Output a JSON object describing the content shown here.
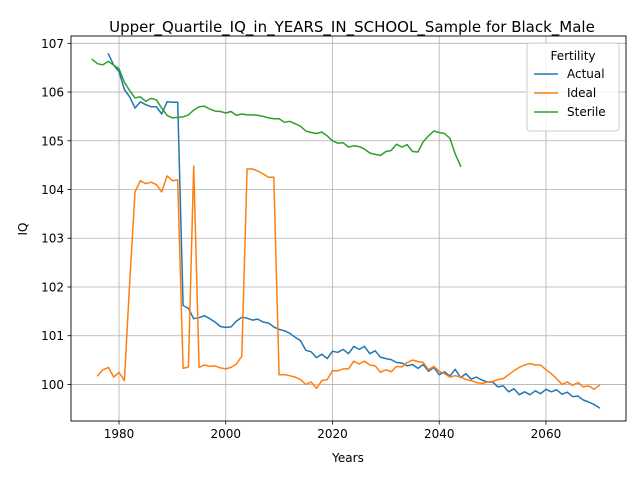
{
  "chart_data": {
    "type": "line",
    "title": "Upper_Quartile_IQ_in_YEARS_IN_SCHOOL_Sample for Black_Male",
    "xlabel": "Years",
    "ylabel": "IQ",
    "xlim": [
      1971,
      2075
    ],
    "ylim": [
      99.25,
      107.15
    ],
    "xticks": [
      1980,
      2000,
      2020,
      2040,
      2060
    ],
    "yticks": [
      100,
      101,
      102,
      103,
      104,
      105,
      106,
      107
    ],
    "grid": true,
    "legend": {
      "title": "Fertility",
      "placement": "top-right"
    },
    "series": [
      {
        "name": "Actual",
        "color": "#1f77b4",
        "x": [
          1978,
          1979,
          1980,
          1981,
          1982,
          1983,
          1984,
          1985,
          1986,
          1987,
          1988,
          1989,
          1990,
          1991,
          1992,
          1993,
          1994,
          1995,
          1996,
          1997,
          1998,
          1999,
          2000,
          2001,
          2002,
          2003,
          2004,
          2005,
          2006,
          2007,
          2008,
          2009,
          2010,
          2011,
          2012,
          2013,
          2014,
          2015,
          2016,
          2017,
          2018,
          2019,
          2020,
          2021,
          2022,
          2023,
          2024,
          2025,
          2026,
          2027,
          2028,
          2029,
          2030,
          2031,
          2032,
          2033,
          2034,
          2035,
          2036,
          2037,
          2038,
          2039,
          2040,
          2041,
          2042,
          2043,
          2044,
          2045,
          2046,
          2047,
          2048,
          2049,
          2050,
          2051,
          2052,
          2053,
          2054,
          2055,
          2056,
          2057,
          2058,
          2059,
          2060,
          2061,
          2062,
          2063,
          2064,
          2065,
          2066,
          2067,
          2068,
          2069,
          2070
        ],
        "values": [
          106.78,
          106.55,
          106.42,
          106.05,
          105.9,
          105.67,
          105.8,
          105.74,
          105.7,
          105.7,
          105.55,
          105.8,
          105.79,
          105.79,
          101.62,
          101.56,
          101.35,
          101.37,
          101.41,
          101.35,
          101.28,
          101.19,
          101.17,
          101.18,
          101.3,
          101.38,
          101.36,
          101.32,
          101.34,
          101.28,
          101.26,
          101.18,
          101.13,
          101.1,
          101.05,
          100.97,
          100.9,
          100.7,
          100.67,
          100.55,
          100.62,
          100.53,
          100.68,
          100.66,
          100.72,
          100.63,
          100.78,
          100.72,
          100.78,
          100.63,
          100.69,
          100.56,
          100.53,
          100.51,
          100.45,
          100.44,
          100.38,
          100.41,
          100.33,
          100.41,
          100.27,
          100.35,
          100.2,
          100.26,
          100.17,
          100.31,
          100.14,
          100.22,
          100.11,
          100.15,
          100.09,
          100.05,
          100.05,
          99.95,
          99.97,
          99.85,
          99.91,
          99.79,
          99.85,
          99.79,
          99.87,
          99.81,
          99.9,
          99.85,
          99.89,
          99.8,
          99.84,
          99.75,
          99.76,
          99.68,
          99.64,
          99.59,
          99.52
        ]
      },
      {
        "name": "Ideal",
        "color": "#ff7f0e",
        "x": [
          1976,
          1977,
          1978,
          1979,
          1980,
          1981,
          1982,
          1983,
          1984,
          1985,
          1986,
          1987,
          1988,
          1989,
          1990,
          1991,
          1992,
          1993,
          1994,
          1995,
          1996,
          1997,
          1998,
          1999,
          2000,
          2001,
          2002,
          2003,
          2004,
          2005,
          2006,
          2007,
          2008,
          2009,
          2010,
          2011,
          2012,
          2013,
          2014,
          2015,
          2016,
          2017,
          2018,
          2019,
          2020,
          2021,
          2022,
          2023,
          2024,
          2025,
          2026,
          2027,
          2028,
          2029,
          2030,
          2031,
          2032,
          2033,
          2034,
          2035,
          2036,
          2037,
          2038,
          2039,
          2040,
          2041,
          2042,
          2043,
          2044,
          2045,
          2046,
          2047,
          2048,
          2049,
          2050,
          2051,
          2052,
          2053,
          2054,
          2055,
          2056,
          2057,
          2058,
          2059,
          2060,
          2061,
          2062,
          2063,
          2064,
          2065,
          2066,
          2067,
          2068,
          2069,
          2070
        ],
        "values": [
          100.18,
          100.3,
          100.35,
          100.15,
          100.25,
          100.08,
          102.1,
          103.95,
          104.18,
          104.12,
          104.15,
          104.1,
          103.95,
          104.28,
          104.18,
          104.2,
          100.33,
          100.36,
          104.48,
          100.35,
          100.4,
          100.37,
          100.38,
          100.34,
          100.32,
          100.35,
          100.42,
          100.58,
          104.42,
          104.42,
          104.38,
          104.32,
          104.25,
          104.25,
          100.2,
          100.2,
          100.18,
          100.15,
          100.1,
          100.0,
          100.05,
          99.92,
          100.08,
          100.1,
          100.28,
          100.28,
          100.32,
          100.32,
          100.48,
          100.42,
          100.48,
          100.4,
          100.38,
          100.25,
          100.3,
          100.26,
          100.37,
          100.36,
          100.45,
          100.5,
          100.47,
          100.45,
          100.3,
          100.37,
          100.27,
          100.22,
          100.15,
          100.18,
          100.15,
          100.1,
          100.08,
          100.04,
          100.02,
          100.05,
          100.06,
          100.1,
          100.12,
          100.2,
          100.28,
          100.35,
          100.4,
          100.43,
          100.4,
          100.4,
          100.3,
          100.22,
          100.12,
          100.0,
          100.05,
          99.98,
          100.04,
          99.95,
          99.97,
          99.9,
          99.98
        ]
      },
      {
        "name": "Sterile",
        "color": "#2ca02c",
        "x": [
          1975,
          1976,
          1977,
          1978,
          1979,
          1980,
          1981,
          1982,
          1983,
          1984,
          1985,
          1986,
          1987,
          1988,
          1989,
          1990,
          1991,
          1992,
          1993,
          1994,
          1995,
          1996,
          1997,
          1998,
          1999,
          2000,
          2001,
          2002,
          2003,
          2004,
          2005,
          2006,
          2007,
          2008,
          2009,
          2010,
          2011,
          2012,
          2013,
          2014,
          2015,
          2016,
          2017,
          2018,
          2019,
          2020,
          2021,
          2022,
          2023,
          2024,
          2025,
          2026,
          2027,
          2028,
          2029,
          2030,
          2031,
          2032,
          2033,
          2034,
          2035,
          2036,
          2037,
          2038,
          2039,
          2040,
          2041,
          2042,
          2043,
          2044
        ],
        "values": [
          106.67,
          106.58,
          106.56,
          106.63,
          106.55,
          106.48,
          106.2,
          106.03,
          105.88,
          105.9,
          105.81,
          105.87,
          105.84,
          105.67,
          105.52,
          105.47,
          105.48,
          105.49,
          105.53,
          105.63,
          105.7,
          105.71,
          105.65,
          105.61,
          105.6,
          105.57,
          105.6,
          105.52,
          105.55,
          105.53,
          105.53,
          105.52,
          105.5,
          105.47,
          105.45,
          105.45,
          105.38,
          105.4,
          105.35,
          105.3,
          105.2,
          105.17,
          105.15,
          105.18,
          105.1,
          105.0,
          104.95,
          104.96,
          104.87,
          104.9,
          104.88,
          104.83,
          104.75,
          104.72,
          104.7,
          104.78,
          104.8,
          104.93,
          104.87,
          104.92,
          104.78,
          104.77,
          104.98,
          105.1,
          105.2,
          105.17,
          105.15,
          105.05,
          104.73,
          104.48
        ]
      }
    ]
  }
}
